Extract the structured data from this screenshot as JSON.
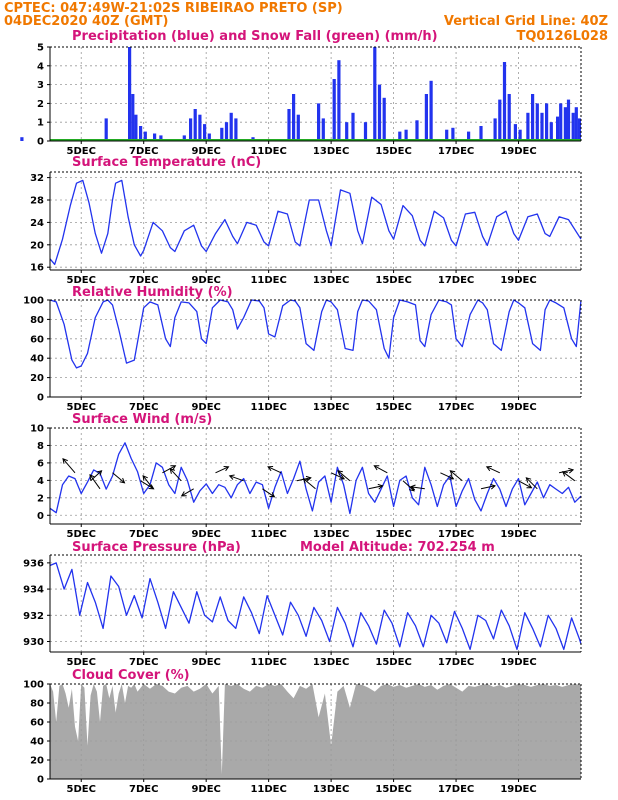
{
  "header": {
    "line1": "CPTEC:  047:49W-21:02S  RIBEIRAO PRETO (SP)",
    "line2": "04DEC2020 40Z (GMT)",
    "vgrid": "Vertical Grid Line: 40Z",
    "code": "TQ0126L028"
  },
  "colors": {
    "precip": "#2233ee",
    "snow": "#22aa22",
    "line": "#2233ee",
    "cloud": "#a9a9a9",
    "title": "#d4147a",
    "header": "#f07800"
  },
  "x_ticks": [
    "5DEC",
    "7DEC",
    "9DEC",
    "11DEC",
    "13DEC",
    "15DEC",
    "17DEC",
    "19DEC"
  ],
  "chart_data": [
    {
      "type": "bar",
      "title": "Precipitation (blue) and Snow Fall (green) (mm/h)",
      "ylim": [
        0,
        5
      ],
      "yticks": [
        0,
        1,
        2,
        3,
        4,
        5
      ],
      "series": [
        {
          "name": "Precipitation",
          "bars": [
            [
              3.1,
              0.2
            ],
            [
              5.8,
              1.2
            ],
            [
              6.55,
              5.0
            ],
            [
              6.65,
              2.5
            ],
            [
              6.75,
              1.4
            ],
            [
              6.9,
              0.8
            ],
            [
              7.05,
              0.5
            ],
            [
              7.35,
              0.4
            ],
            [
              7.55,
              0.3
            ],
            [
              8.3,
              0.3
            ],
            [
              8.5,
              1.2
            ],
            [
              8.65,
              1.7
            ],
            [
              8.8,
              1.4
            ],
            [
              8.95,
              0.9
            ],
            [
              9.1,
              0.4
            ],
            [
              9.5,
              0.7
            ],
            [
              9.65,
              1.0
            ],
            [
              9.8,
              1.5
            ],
            [
              9.95,
              1.2
            ],
            [
              10.5,
              0.2
            ],
            [
              11.65,
              1.7
            ],
            [
              11.8,
              2.5
            ],
            [
              11.95,
              1.4
            ],
            [
              12.6,
              2.0
            ],
            [
              12.75,
              1.2
            ],
            [
              13.1,
              3.3
            ],
            [
              13.25,
              4.3
            ],
            [
              13.5,
              1.0
            ],
            [
              13.7,
              1.5
            ],
            [
              14.1,
              1.0
            ],
            [
              14.4,
              5.0
            ],
            [
              14.55,
              3.0
            ],
            [
              14.7,
              2.3
            ],
            [
              15.2,
              0.5
            ],
            [
              15.4,
              0.6
            ],
            [
              15.75,
              1.1
            ],
            [
              16.05,
              2.5
            ],
            [
              16.2,
              3.2
            ],
            [
              16.7,
              0.6
            ],
            [
              16.9,
              0.7
            ],
            [
              17.4,
              0.5
            ],
            [
              17.8,
              0.8
            ],
            [
              18.25,
              1.2
            ],
            [
              18.4,
              2.2
            ],
            [
              18.55,
              4.2
            ],
            [
              18.7,
              2.5
            ],
            [
              18.9,
              0.9
            ],
            [
              19.05,
              0.6
            ],
            [
              19.3,
              1.5
            ],
            [
              19.45,
              2.5
            ],
            [
              19.6,
              2.0
            ],
            [
              19.75,
              1.5
            ],
            [
              19.9,
              2.0
            ],
            [
              20.05,
              1.0
            ],
            [
              20.25,
              1.3
            ],
            [
              20.35,
              2.0
            ],
            [
              20.5,
              1.8
            ],
            [
              20.6,
              2.2
            ],
            [
              20.75,
              1.5
            ],
            [
              20.85,
              1.8
            ],
            [
              20.95,
              1.2
            ]
          ]
        },
        {
          "name": "Snow Fall",
          "bars": []
        }
      ]
    },
    {
      "type": "line",
      "title": "Surface Temperature (nC)",
      "ylim": [
        15.5,
        33
      ],
      "yticks": [
        16,
        20,
        24,
        28,
        32
      ],
      "x": [
        4,
        4.15,
        4.4,
        4.65,
        4.85,
        5.05,
        5.25,
        5.45,
        5.65,
        5.85,
        6.0,
        6.1,
        6.3,
        6.5,
        6.7,
        6.9,
        7.0,
        7.3,
        7.6,
        7.85,
        8.0,
        8.3,
        8.6,
        8.85,
        9.0,
        9.3,
        9.6,
        9.85,
        10.0,
        10.3,
        10.6,
        10.85,
        11.0,
        11.3,
        11.6,
        11.85,
        12.0,
        12.3,
        12.6,
        12.85,
        13.0,
        13.3,
        13.6,
        13.85,
        14.0,
        14.3,
        14.6,
        14.85,
        15.0,
        15.3,
        15.6,
        15.85,
        16.0,
        16.3,
        16.6,
        16.85,
        17.0,
        17.3,
        17.6,
        17.85,
        18.0,
        18.3,
        18.6,
        18.85,
        19.0,
        19.3,
        19.6,
        19.85,
        20.0,
        20.3,
        20.6,
        21.0
      ],
      "y": [
        17.5,
        16.5,
        21,
        27,
        31,
        31.5,
        27.5,
        22,
        18.5,
        22,
        28,
        31,
        31.5,
        25,
        20,
        18,
        19,
        24,
        22.5,
        19.5,
        18.8,
        22.5,
        23.5,
        19.8,
        18.8,
        22,
        24.5,
        21.5,
        20.2,
        24,
        23.5,
        20.5,
        19.8,
        26,
        25.5,
        20.5,
        19.8,
        28,
        28,
        22.5,
        19.8,
        29.8,
        29.2,
        22.5,
        20.2,
        28.5,
        27.2,
        22.5,
        21,
        27,
        25.2,
        20.8,
        19.8,
        26,
        24.8,
        20.8,
        19.8,
        25.5,
        25.8,
        21.5,
        19.9,
        25,
        26,
        22,
        20.8,
        25,
        25.5,
        22,
        21.5,
        25,
        24.5,
        21
      ]
    },
    {
      "type": "line",
      "title": "Relative Humidity (%)",
      "ylim": [
        0,
        100
      ],
      "yticks": [
        0,
        20,
        40,
        60,
        80,
        100
      ],
      "x": [
        4,
        4.2,
        4.45,
        4.7,
        4.85,
        5.0,
        5.2,
        5.45,
        5.7,
        5.85,
        6.0,
        6.2,
        6.45,
        6.7,
        6.85,
        7.0,
        7.2,
        7.45,
        7.7,
        7.85,
        8.0,
        8.2,
        8.45,
        8.7,
        8.85,
        9.0,
        9.2,
        9.45,
        9.7,
        9.85,
        10.0,
        10.2,
        10.45,
        10.7,
        10.85,
        11.0,
        11.2,
        11.45,
        11.7,
        11.85,
        12.0,
        12.2,
        12.45,
        12.7,
        12.85,
        13.0,
        13.2,
        13.45,
        13.7,
        13.85,
        14.0,
        14.2,
        14.45,
        14.7,
        14.85,
        15.0,
        15.2,
        15.45,
        15.7,
        15.85,
        16.0,
        16.2,
        16.45,
        16.7,
        16.85,
        17.0,
        17.2,
        17.45,
        17.7,
        17.85,
        18.0,
        18.2,
        18.45,
        18.7,
        18.85,
        19.0,
        19.2,
        19.45,
        19.7,
        19.85,
        20.0,
        20.2,
        20.45,
        20.7,
        20.85,
        21.0
      ],
      "y": [
        100,
        98,
        75,
        38,
        30,
        32,
        45,
        82,
        98,
        100,
        95,
        70,
        35,
        38,
        65,
        92,
        98,
        95,
        60,
        52,
        82,
        98,
        97,
        88,
        60,
        55,
        92,
        100,
        98,
        90,
        70,
        82,
        100,
        99,
        92,
        65,
        62,
        94,
        100,
        99,
        92,
        55,
        48,
        88,
        100,
        98,
        90,
        50,
        48,
        88,
        100,
        99,
        90,
        50,
        40,
        82,
        100,
        98,
        95,
        58,
        52,
        85,
        100,
        98,
        95,
        60,
        52,
        85,
        100,
        97,
        90,
        55,
        48,
        88,
        100,
        97,
        92,
        55,
        48,
        90,
        100,
        97,
        92,
        60,
        52,
        100
      ]
    },
    {
      "type": "line",
      "title": "Surface Wind (m/s)",
      "ylim": [
        -1,
        10
      ],
      "yticks": [
        0,
        2,
        4,
        6,
        8,
        10
      ],
      "x": [
        4,
        4.2,
        4.4,
        4.6,
        4.8,
        5.0,
        5.2,
        5.4,
        5.6,
        5.8,
        6.0,
        6.2,
        6.4,
        6.6,
        6.8,
        7.0,
        7.2,
        7.4,
        7.6,
        7.8,
        8.0,
        8.2,
        8.4,
        8.6,
        8.8,
        9.0,
        9.2,
        9.4,
        9.6,
        9.8,
        10.0,
        10.2,
        10.4,
        10.6,
        10.8,
        11.0,
        11.2,
        11.4,
        11.6,
        11.8,
        12.0,
        12.2,
        12.4,
        12.6,
        12.8,
        13.0,
        13.2,
        13.4,
        13.6,
        13.8,
        14.0,
        14.2,
        14.4,
        14.6,
        14.8,
        15.0,
        15.2,
        15.4,
        15.6,
        15.8,
        16.0,
        16.2,
        16.4,
        16.6,
        16.8,
        17.0,
        17.2,
        17.4,
        17.6,
        17.8,
        18.0,
        18.2,
        18.4,
        18.6,
        18.8,
        19.0,
        19.2,
        19.4,
        19.6,
        19.8,
        20.0,
        20.2,
        20.4,
        20.6,
        20.8,
        21.0
      ],
      "y": [
        0.8,
        0.3,
        3.5,
        4.5,
        4.2,
        2.5,
        3.8,
        5.2,
        4.8,
        3.0,
        4.5,
        7.0,
        8.3,
        6.5,
        5.0,
        2.5,
        3.5,
        6.0,
        5.5,
        3.5,
        2.5,
        5.5,
        4.0,
        1.5,
        2.8,
        3.6,
        2.5,
        3.5,
        3.2,
        2.0,
        3.5,
        4.2,
        2.5,
        3.8,
        3.5,
        0.8,
        3.2,
        5.0,
        2.5,
        4.2,
        6.2,
        3.0,
        0.5,
        3.8,
        4.5,
        1.5,
        5.5,
        3.5,
        0.2,
        4.0,
        5.5,
        2.5,
        1.5,
        3.0,
        4.5,
        1.0,
        4.0,
        4.5,
        2.0,
        1.2,
        5.5,
        3.5,
        1.0,
        3.5,
        4.5,
        1.0,
        2.8,
        4.2,
        1.8,
        0.5,
        2.5,
        4.2,
        3.0,
        1.0,
        3.0,
        4.2,
        1.2,
        2.5,
        3.8,
        2.0,
        3.5,
        3.0,
        2.5,
        3.2,
        1.5,
        2.2
      ]
    },
    {
      "type": "line",
      "title": "Surface Pressure (hPa)",
      "annotation": "Model Altitude: 702.254 m",
      "ylim": [
        929.2,
        936.6
      ],
      "yticks": [
        930,
        932,
        934,
        936
      ],
      "x": [
        4,
        4.2,
        4.45,
        4.7,
        4.95,
        5.2,
        5.45,
        5.7,
        5.95,
        6.2,
        6.45,
        6.7,
        6.95,
        7.2,
        7.45,
        7.7,
        7.95,
        8.2,
        8.45,
        8.7,
        8.95,
        9.2,
        9.45,
        9.7,
        9.95,
        10.2,
        10.45,
        10.7,
        10.95,
        11.2,
        11.45,
        11.7,
        11.95,
        12.2,
        12.45,
        12.7,
        12.95,
        13.2,
        13.45,
        13.7,
        13.95,
        14.2,
        14.45,
        14.7,
        14.95,
        15.2,
        15.45,
        15.7,
        15.95,
        16.2,
        16.45,
        16.7,
        16.95,
        17.2,
        17.45,
        17.7,
        17.95,
        18.2,
        18.45,
        18.7,
        18.95,
        19.2,
        19.45,
        19.7,
        19.95,
        20.2,
        20.45,
        20.7,
        20.95,
        21.0
      ],
      "y": [
        935.8,
        936.0,
        934.0,
        935.5,
        932.0,
        934.5,
        933.0,
        931.0,
        935.0,
        934.2,
        932.0,
        933.5,
        931.8,
        934.8,
        933.0,
        931.0,
        933.8,
        932.6,
        931.4,
        933.8,
        932.0,
        931.5,
        933.4,
        931.6,
        931.0,
        933.4,
        932.2,
        930.6,
        933.5,
        932.0,
        930.5,
        933.0,
        932.0,
        930.4,
        932.6,
        931.6,
        930.0,
        932.6,
        931.4,
        929.6,
        932.2,
        931.2,
        929.8,
        932.4,
        931.4,
        929.6,
        932.2,
        931.2,
        929.6,
        932.0,
        931.4,
        929.9,
        932.3,
        931.0,
        929.4,
        932.0,
        931.6,
        930.2,
        932.4,
        931.2,
        929.4,
        932.2,
        931.0,
        929.6,
        932.0,
        931.0,
        929.4,
        931.8,
        930.2,
        929.8
      ]
    },
    {
      "type": "area",
      "title": "Cloud Cover (%)",
      "ylim": [
        0,
        100
      ],
      "yticks": [
        0,
        20,
        40,
        60,
        80,
        100
      ],
      "x": [
        4,
        4.1,
        4.2,
        4.3,
        4.4,
        4.5,
        4.6,
        4.7,
        4.8,
        4.9,
        5.0,
        5.1,
        5.2,
        5.3,
        5.4,
        5.5,
        5.6,
        5.7,
        5.8,
        5.9,
        6.0,
        6.1,
        6.2,
        6.3,
        6.4,
        6.5,
        6.6,
        6.7,
        6.8,
        7.0,
        7.2,
        7.4,
        7.6,
        7.8,
        8.0,
        8.2,
        8.4,
        8.6,
        8.8,
        9.0,
        9.2,
        9.4,
        9.5,
        9.6,
        9.8,
        10.0,
        10.2,
        10.4,
        10.6,
        10.8,
        11.0,
        11.2,
        11.4,
        11.6,
        11.8,
        12.0,
        12.2,
        12.4,
        12.6,
        12.8,
        13.0,
        13.2,
        13.4,
        13.6,
        13.8,
        14.0,
        14.2,
        14.4,
        14.6,
        14.8,
        15.0,
        15.2,
        15.4,
        15.6,
        15.8,
        16.0,
        16.2,
        16.4,
        16.6,
        16.8,
        17.0,
        17.2,
        17.4,
        17.6,
        17.8,
        18.0,
        18.2,
        18.4,
        18.6,
        18.8,
        19.0,
        19.2,
        19.4,
        19.6,
        19.8,
        20.0,
        20.2,
        20.4,
        20.6,
        20.8,
        21.0
      ],
      "y": [
        100,
        92,
        60,
        98,
        100,
        90,
        75,
        95,
        55,
        40,
        100,
        96,
        35,
        88,
        100,
        92,
        60,
        98,
        100,
        85,
        98,
        70,
        90,
        100,
        80,
        98,
        96,
        100,
        92,
        100,
        95,
        100,
        98,
        92,
        90,
        96,
        98,
        92,
        95,
        100,
        90,
        98,
        5,
        100,
        98,
        100,
        95,
        92,
        98,
        96,
        100,
        98,
        100,
        92,
        85,
        98,
        95,
        100,
        65,
        90,
        35,
        92,
        98,
        75,
        100,
        99,
        96,
        92,
        98,
        100,
        97,
        99,
        96,
        98,
        100,
        97,
        99,
        94,
        98,
        100,
        96,
        92,
        98,
        97,
        99,
        100,
        97,
        99,
        96,
        98,
        100,
        99,
        97,
        99,
        100,
        98,
        99,
        97,
        99,
        100,
        99
      ]
    }
  ]
}
